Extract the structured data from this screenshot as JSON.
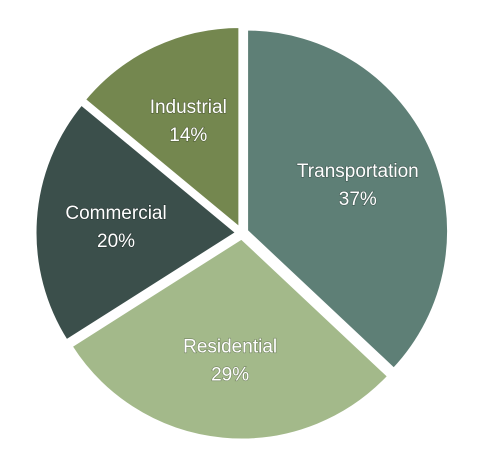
{
  "chart_data": {
    "type": "pie",
    "title": "",
    "slices": [
      {
        "label": "Transportation",
        "value": 37,
        "value_label": "37%",
        "color": "#5e7f76"
      },
      {
        "label": "Residential",
        "value": 29,
        "value_label": "29%",
        "color": "#a3b98a"
      },
      {
        "label": "Commercial",
        "value": 20,
        "value_label": "20%",
        "color": "#3b4f4b"
      },
      {
        "label": "Industrial",
        "value": 14,
        "value_label": "14%",
        "color": "#74874f"
      }
    ],
    "start_angle": "12 o'clock",
    "direction": "clockwise",
    "exploded": true,
    "legend": "none"
  }
}
